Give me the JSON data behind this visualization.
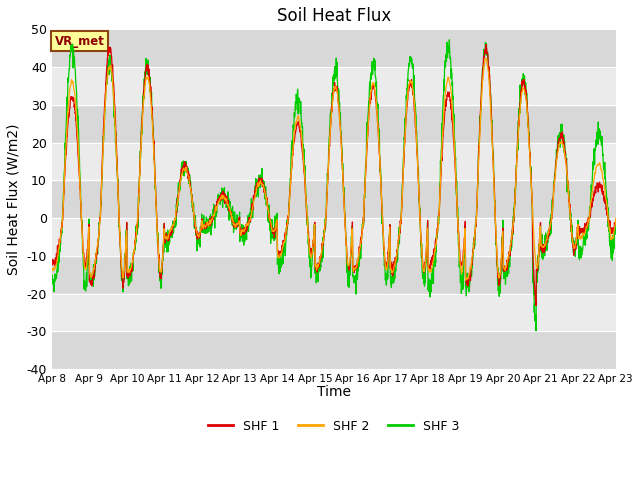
{
  "title": "Soil Heat Flux",
  "xlabel": "Time",
  "ylabel": "Soil Heat Flux (W/m2)",
  "ylim": [
    -40,
    50
  ],
  "yticks": [
    -40,
    -30,
    -20,
    -10,
    0,
    10,
    20,
    30,
    40,
    50
  ],
  "shf1_color": "#dd0000",
  "shf2_color": "#ffa500",
  "shf3_color": "#00cc00",
  "legend_labels": [
    "SHF 1",
    "SHF 2",
    "SHF 3"
  ],
  "annotation_text": "VR_met",
  "annotation_bg": "#ffff99",
  "annotation_border": "#8B4513",
  "plot_bg": "#f5f5f5",
  "band_light": "#f0f0f0",
  "band_dark": "#d8d8d8",
  "grid_color": "#ffffff",
  "n_days": 15,
  "points_per_day": 144,
  "day_scales_shf1": [
    32,
    45,
    40,
    14,
    6,
    10,
    25,
    35,
    35,
    36,
    33,
    45,
    36,
    22,
    9
  ],
  "day_scales_shf3_extra": [
    45,
    41,
    40,
    14,
    6,
    10,
    32,
    39,
    41,
    42,
    46,
    45,
    37,
    22,
    22
  ]
}
